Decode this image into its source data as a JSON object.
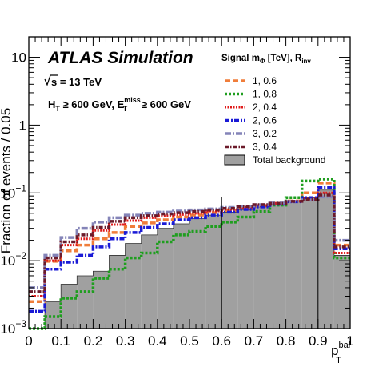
{
  "chart_data": {
    "type": "histogram",
    "title": "ATLAS Simulation",
    "annotations": [
      "√s = 13 TeV",
      "H_T ≥ 600 GeV, E_T^miss ≥ 600 GeV"
    ],
    "sqrt_s_text": "s = 13 TeV",
    "sel_ht_text": "H",
    "sel_ht_sub": "T",
    "sel_ht_rest": " ≥ 600 GeV, E",
    "sel_met_sup": "miss",
    "sel_met_sub": "T",
    "sel_met_rest": " ≥ 600 GeV",
    "xlabel": "p",
    "xlabel_sup": "bal",
    "xlabel_sub": "T",
    "ylabel": "Fraction of events / 0.05",
    "xlim": [
      0,
      1
    ],
    "ylim": [
      0.001,
      20
    ],
    "yscale": "log",
    "xticks": [
      "0",
      "0.1",
      "0.2",
      "0.3",
      "0.4",
      "0.5",
      "0.6",
      "0.7",
      "0.8",
      "0.9",
      "1"
    ],
    "yticks": [
      {
        "base": "10",
        "exp": "−3",
        "value": 0.001
      },
      {
        "base": "10",
        "exp": "−2",
        "value": 0.01
      },
      {
        "base": "10",
        "exp": "−1",
        "value": 0.1
      },
      {
        "base": "1",
        "exp": "",
        "value": 1
      },
      {
        "base": "10",
        "exp": "",
        "value": 10
      }
    ],
    "vertical_lines": [
      0.6,
      0.9
    ],
    "legend_title": "Signal m",
    "legend_title_sub": "Φ",
    "legend_title_rest": " [TeV], R",
    "legend_title_sub2": "inv",
    "legend_position": "top-right",
    "bin_edges": [
      0,
      0.05,
      0.1,
      0.15,
      0.2,
      0.25,
      0.3,
      0.35,
      0.4,
      0.45,
      0.5,
      0.55,
      0.6,
      0.65,
      0.7,
      0.75,
      0.8,
      0.85,
      0.9,
      0.95,
      1.0
    ],
    "background": {
      "name": "Total background",
      "color": "#a0a0a0",
      "values": [
        0.001,
        0.0025,
        0.0045,
        0.006,
        0.007,
        0.012,
        0.018,
        0.024,
        0.03,
        0.035,
        0.042,
        0.047,
        0.052,
        0.056,
        0.062,
        0.068,
        0.074,
        0.085,
        0.11,
        0.012
      ]
    },
    "series": [
      {
        "name": "1, 0.6",
        "color": "#f07d3a",
        "dash": "7,3",
        "width": 3.5,
        "values": [
          0.0025,
          0.0098,
          0.014,
          0.017,
          0.021,
          0.026,
          0.032,
          0.036,
          0.04,
          0.044,
          0.047,
          0.051,
          0.055,
          0.06,
          0.065,
          0.07,
          0.076,
          0.1,
          0.14,
          0.017
        ]
      },
      {
        "name": "1, 0.8",
        "color": "#1f9e1f",
        "dash": "3,2",
        "width": 3.5,
        "values": [
          0.001,
          0.0015,
          0.0028,
          0.0035,
          0.0055,
          0.0075,
          0.011,
          0.013,
          0.019,
          0.024,
          0.027,
          0.032,
          0.037,
          0.044,
          0.053,
          0.066,
          0.085,
          0.15,
          0.16,
          0.011
        ]
      },
      {
        "name": "2, 0.4",
        "color": "#e01a1a",
        "dash": "2,1.5",
        "width": 3.0,
        "values": [
          0.003,
          0.01,
          0.017,
          0.021,
          0.028,
          0.034,
          0.039,
          0.043,
          0.046,
          0.048,
          0.05,
          0.054,
          0.057,
          0.061,
          0.065,
          0.07,
          0.075,
          0.083,
          0.1,
          0.013
        ]
      },
      {
        "name": "2, 0.6",
        "color": "#1a1ad6",
        "dash": "6,2,2,2",
        "width": 3.5,
        "values": [
          0.0018,
          0.0075,
          0.0095,
          0.012,
          0.016,
          0.021,
          0.026,
          0.031,
          0.035,
          0.04,
          0.043,
          0.047,
          0.052,
          0.057,
          0.062,
          0.068,
          0.074,
          0.085,
          0.12,
          0.015
        ]
      },
      {
        "name": "3, 0.2",
        "color": "#8484b8",
        "dash": "8,2,2,2",
        "width": 3.5,
        "values": [
          0.004,
          0.012,
          0.022,
          0.03,
          0.037,
          0.043,
          0.047,
          0.05,
          0.052,
          0.054,
          0.056,
          0.058,
          0.061,
          0.064,
          0.067,
          0.071,
          0.075,
          0.079,
          0.087,
          0.02
        ]
      },
      {
        "name": "3, 0.4",
        "color": "#6b1a2a",
        "dash": "5,2,1.5,2",
        "width": 3.5,
        "values": [
          0.0035,
          0.011,
          0.019,
          0.024,
          0.031,
          0.038,
          0.043,
          0.046,
          0.049,
          0.051,
          0.053,
          0.056,
          0.059,
          0.063,
          0.067,
          0.07,
          0.075,
          0.08,
          0.093,
          0.016
        ]
      }
    ]
  }
}
